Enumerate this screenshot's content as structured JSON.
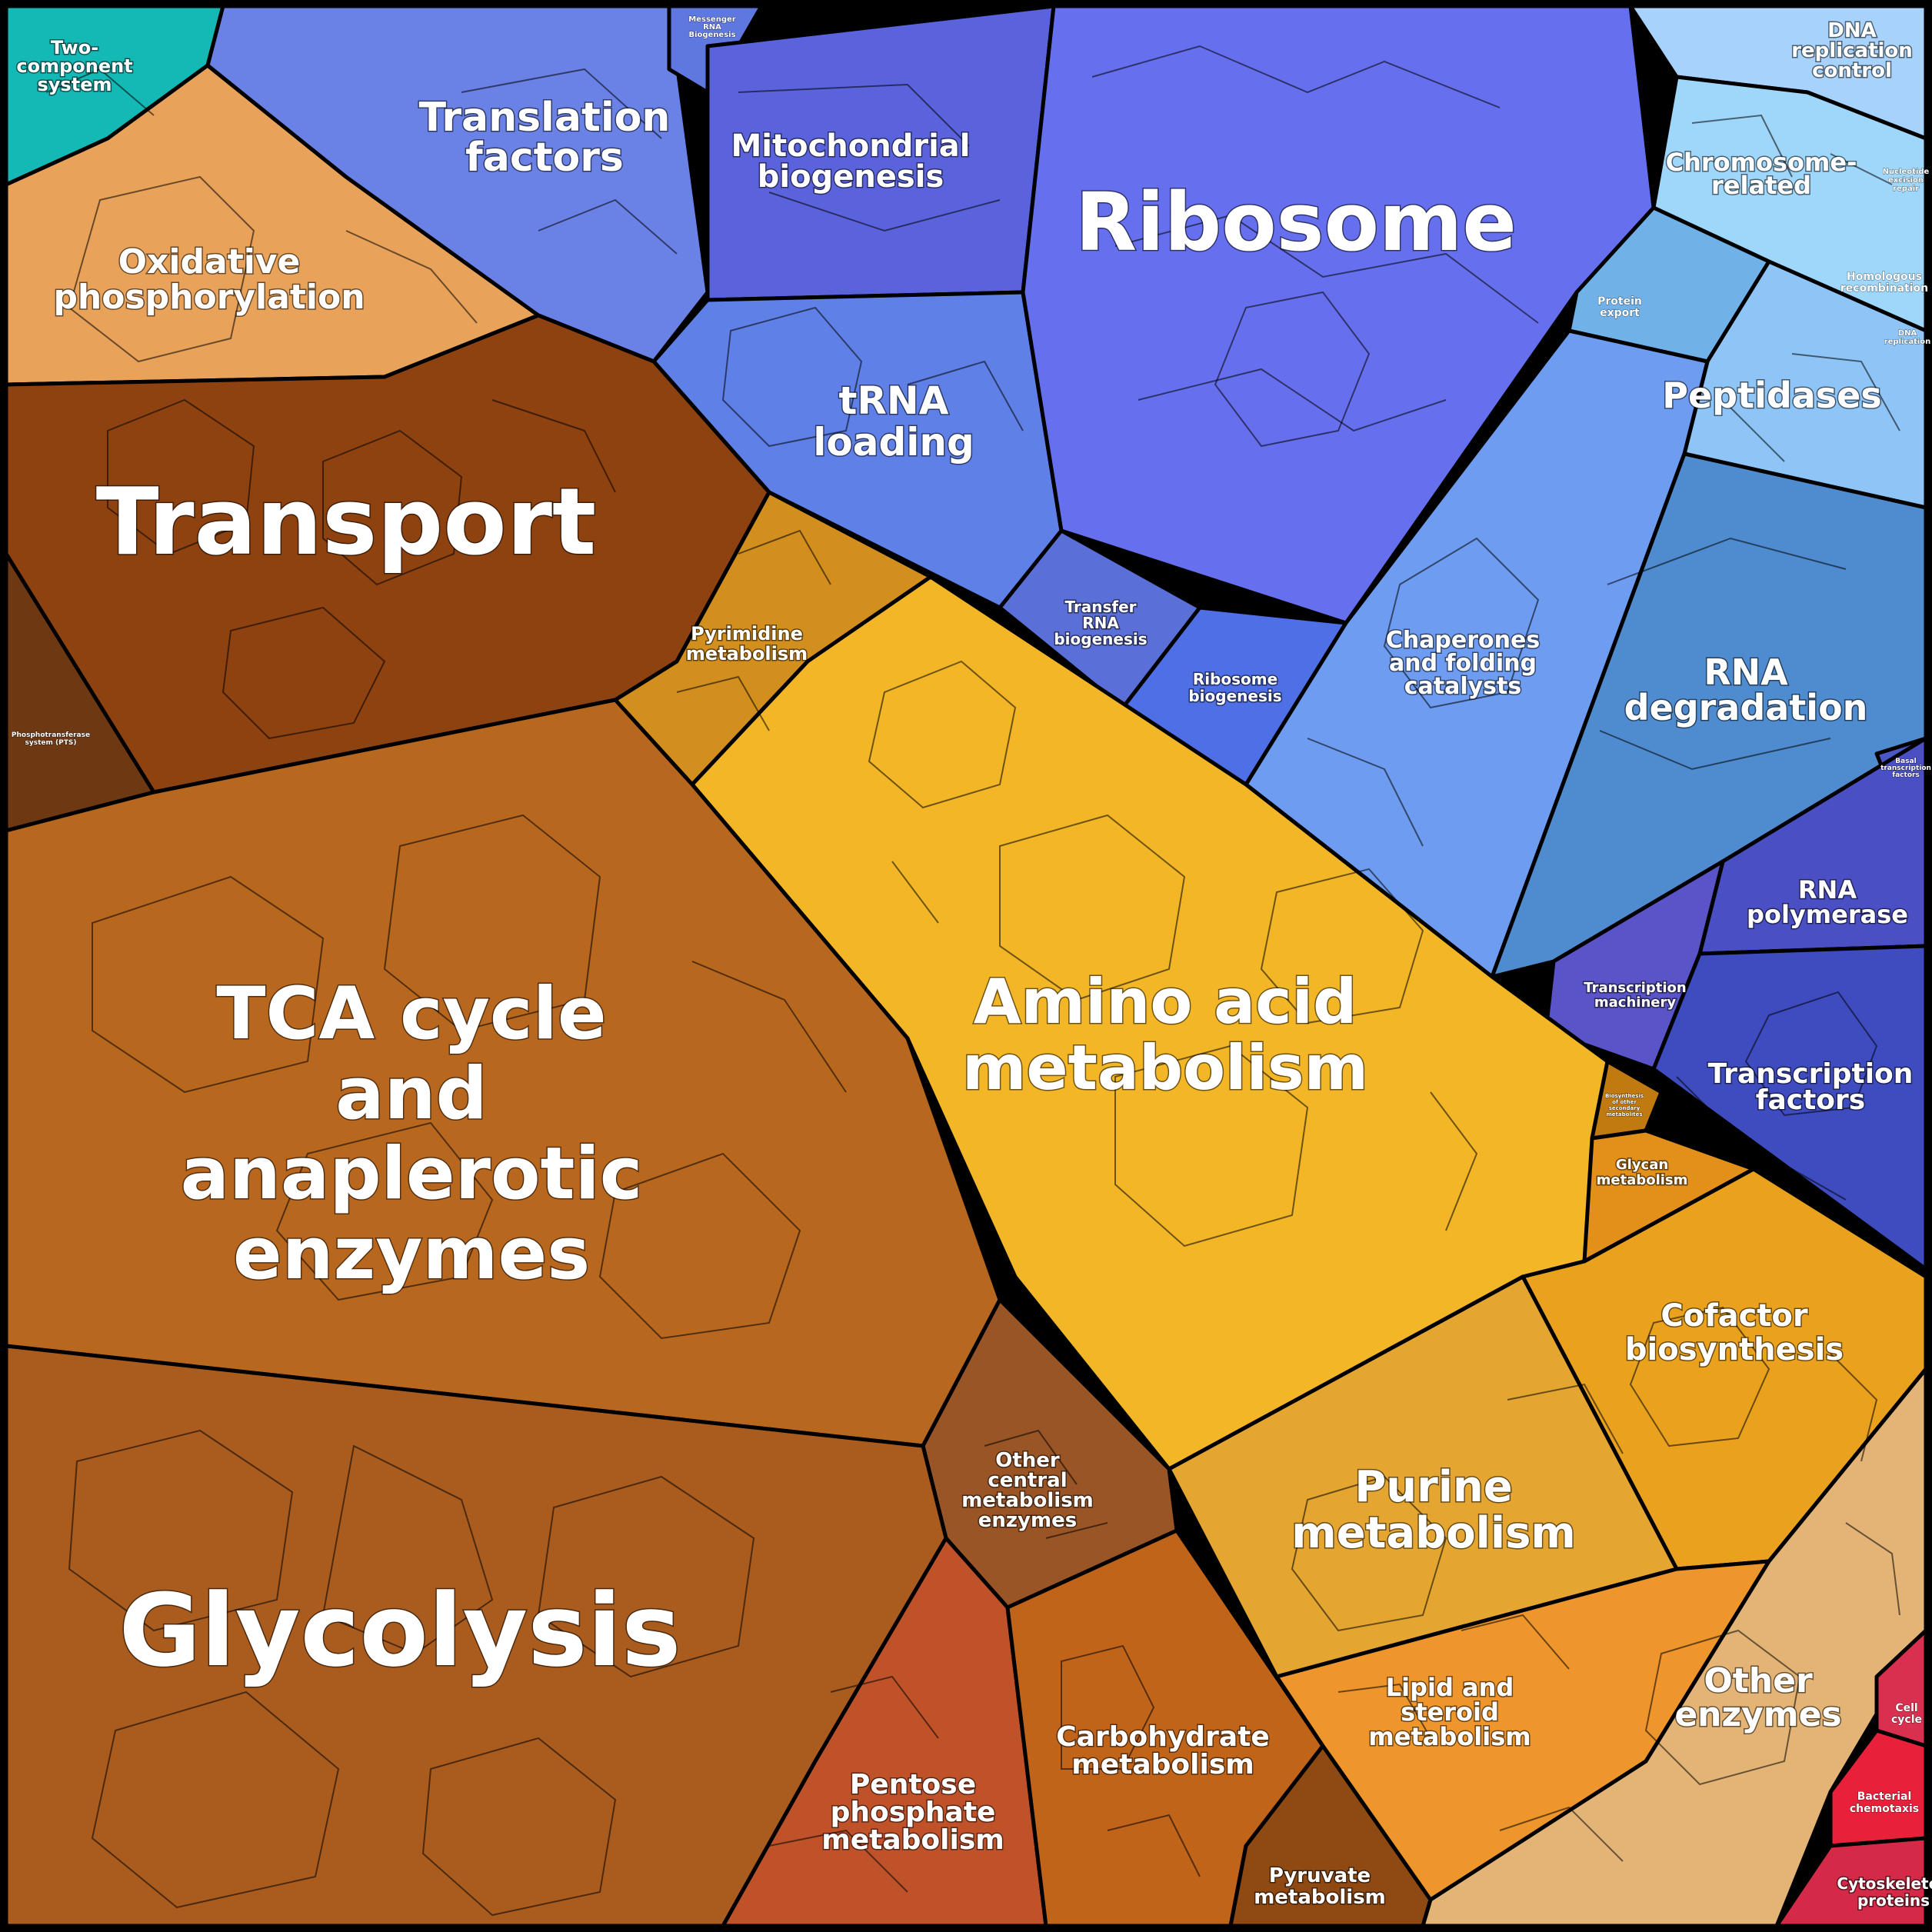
{
  "categories": [
    {
      "id": "two-component-system",
      "label": [
        "Two-",
        "component",
        "system"
      ],
      "color": "#14b8b4"
    },
    {
      "id": "translation-factors",
      "label": [
        "Translation",
        "factors"
      ],
      "color": "#6a82e6"
    },
    {
      "id": "messenger-rna-biogenesis",
      "label": [
        "Messenger",
        "RNA",
        "Biogenesis"
      ],
      "color": "#5f78e0"
    },
    {
      "id": "mitochondrial-biogenesis",
      "label": [
        "Mitochondrial",
        "biogenesis"
      ],
      "color": "#5a63dc"
    },
    {
      "id": "ribosome",
      "label": [
        "Ribosome"
      ],
      "color": "#6670ee"
    },
    {
      "id": "dna-replication-control",
      "label": [
        "DNA",
        "replication",
        "control"
      ],
      "color": "#a7d2fb"
    },
    {
      "id": "chromosome-related",
      "label": [
        "Chromosome-",
        "related"
      ],
      "color": "#9fd7fb"
    },
    {
      "id": "nucleotide-excision-repair",
      "label": [
        "Nucleotide",
        "excision",
        "repair"
      ],
      "color": "#a6d4f8"
    },
    {
      "id": "homologous-recombination",
      "label": [
        "Homologous",
        "recombination"
      ],
      "color": "#9fcdf7"
    },
    {
      "id": "dna-replication",
      "label": [
        "DNA",
        "replication"
      ],
      "color": "#a8d4f8"
    },
    {
      "id": "protein-export",
      "label": [
        "Protein",
        "export"
      ],
      "color": "#70b1e8"
    },
    {
      "id": "peptidases",
      "label": [
        "Peptidases"
      ],
      "color": "#8ec4f6"
    },
    {
      "id": "oxidative-phosphorylation",
      "label": [
        "Oxidative",
        "phosphorylation"
      ],
      "color": "#e8a25a"
    },
    {
      "id": "trna-loading",
      "label": [
        "tRNA",
        "loading"
      ],
      "color": "#5f80e6"
    },
    {
      "id": "transport",
      "label": [
        "Transport"
      ],
      "color": "#8e4210"
    },
    {
      "id": "phosphotransferase-system",
      "label": [
        "Phosphotransferase",
        "system (PTS)"
      ],
      "color": "#6e3812"
    },
    {
      "id": "transfer-rna-biogenesis",
      "label": [
        "Transfer",
        "RNA",
        "biogenesis"
      ],
      "color": "#5b6fd8"
    },
    {
      "id": "ribosome-biogenesis",
      "label": [
        "Ribosome",
        "biogenesis"
      ],
      "color": "#4f6fe6"
    },
    {
      "id": "chaperones-and-folding-catalysts",
      "label": [
        "Chaperones",
        "and folding",
        "catalysts"
      ],
      "color": "#6e9cf0"
    },
    {
      "id": "rna-degradation",
      "label": [
        "RNA",
        "degradation"
      ],
      "color": "#4f8ccf"
    },
    {
      "id": "pyrimidine-metabolism",
      "label": [
        "Pyrimidine",
        "metabolism"
      ],
      "color": "#d38f1e"
    },
    {
      "id": "amino-acid-metabolism",
      "label": [
        "Amino acid",
        "metabolism"
      ],
      "color": "#f2b626"
    },
    {
      "id": "basal-transcription-factors",
      "label": [
        "Basal",
        "transcription",
        "factors"
      ],
      "color": "#4a57c4"
    },
    {
      "id": "rna-polymerase",
      "label": [
        "RNA",
        "polymerase"
      ],
      "color": "#4a4fc4"
    },
    {
      "id": "transcription-machinery",
      "label": [
        "Transcription",
        "machinery"
      ],
      "color": "#5a54c8"
    },
    {
      "id": "transcription-factors",
      "label": [
        "Transcription",
        "factors"
      ],
      "color": "#3e4cc0"
    },
    {
      "id": "tca-cycle-and-anaplerotic-enzymes",
      "label": [
        "TCA cycle",
        "and",
        "anaplerotic",
        "enzymes"
      ],
      "color": "#b8671f"
    },
    {
      "id": "biosynthesis-of-secondary-metabolites",
      "label": [
        "Biosynthesis",
        "of other",
        "secondary",
        "metabolites"
      ],
      "color": "#c07a10"
    },
    {
      "id": "glycan-metabolism",
      "label": [
        "Glycan",
        "metabolism"
      ],
      "color": "#e2901a"
    },
    {
      "id": "cofactor-biosynthesis",
      "label": [
        "Cofactor",
        "biosynthesis"
      ],
      "color": "#eaa21e"
    },
    {
      "id": "other-central-metabolism-enzymes",
      "label": [
        "Other",
        "central",
        "metabolism",
        "enzymes"
      ],
      "color": "#9a5526"
    },
    {
      "id": "purine-metabolism",
      "label": [
        "Purine",
        "metabolism"
      ],
      "color": "#e4a630"
    },
    {
      "id": "glycolysis",
      "label": [
        "Glycolysis"
      ],
      "color": "#a95c1e"
    },
    {
      "id": "lipid-and-steroid-metabolism",
      "label": [
        "Lipid and",
        "steroid",
        "metabolism"
      ],
      "color": "#ee952c"
    },
    {
      "id": "other-enzymes",
      "label": [
        "Other",
        "enzymes"
      ],
      "color": "#e3b475"
    },
    {
      "id": "cell-cycle",
      "label": [
        "Cell",
        "cycle"
      ],
      "color": "#d8304e"
    },
    {
      "id": "bacterial-chemotaxis",
      "label": [
        "Bacterial",
        "chemotaxis"
      ],
      "color": "#e8203a"
    },
    {
      "id": "carbohydrate-metabolism",
      "label": [
        "Carbohydrate",
        "metabolism"
      ],
      "color": "#c0641a"
    },
    {
      "id": "pentose-phosphate-metabolism",
      "label": [
        "Pentose",
        "phosphate",
        "metabolism"
      ],
      "color": "#c0522a"
    },
    {
      "id": "pyruvate-metabolism",
      "label": [
        "Pyruvate",
        "metabolism"
      ],
      "color": "#8e4a12"
    },
    {
      "id": "cytoskeleton-proteins",
      "label": [
        "Cytoskeleton",
        "proteins"
      ],
      "color": "#d42a48"
    }
  ]
}
